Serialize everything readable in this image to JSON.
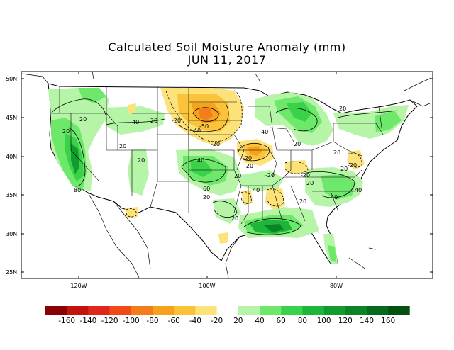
{
  "title": "Calculated Soil Moisture Anomaly (mm)",
  "date": "JUN 11, 2017",
  "units": "mm",
  "lat_ticks": [
    "50N",
    "45N",
    "40N",
    "35N",
    "30N",
    "25N"
  ],
  "lon_ticks": [
    "120W",
    "100W",
    "80W"
  ],
  "colorbar": {
    "labels": [
      "-160",
      "-140",
      "-120",
      "-100",
      "-80",
      "-60",
      "-40",
      "-20",
      "20",
      "40",
      "60",
      "80",
      "100",
      "120",
      "140",
      "160"
    ],
    "colors": [
      "#8b0000",
      "#c0140c",
      "#e0281a",
      "#f04a18",
      "#f57c1a",
      "#f5a21e",
      "#fbc33a",
      "#fde27a",
      "#ffffff",
      "#b6f5a8",
      "#6ee86a",
      "#3ad24a",
      "#1db53a",
      "#129c2e",
      "#0b8426",
      "#066a1c",
      "#03500f"
    ]
  },
  "contour_labels": [
    {
      "text": "20"
    },
    {
      "text": "40"
    },
    {
      "text": "20"
    },
    {
      "text": "20"
    },
    {
      "text": "20"
    },
    {
      "text": "-40"
    },
    {
      "text": "-50"
    },
    {
      "text": "-20"
    },
    {
      "text": "-20"
    },
    {
      "text": "-20"
    },
    {
      "text": "40"
    },
    {
      "text": "20"
    },
    {
      "text": "40"
    },
    {
      "text": "20"
    },
    {
      "text": "20"
    },
    {
      "text": "20"
    },
    {
      "text": "-20"
    },
    {
      "text": "-20"
    },
    {
      "text": "20"
    },
    {
      "text": "40"
    },
    {
      "text": "60"
    },
    {
      "text": "20"
    },
    {
      "text": "20"
    },
    {
      "text": "40"
    },
    {
      "text": "-20"
    },
    {
      "text": "20"
    },
    {
      "text": "40"
    },
    {
      "text": "20"
    },
    {
      "text": "-20"
    },
    {
      "text": "80"
    },
    {
      "text": "20"
    }
  ]
}
